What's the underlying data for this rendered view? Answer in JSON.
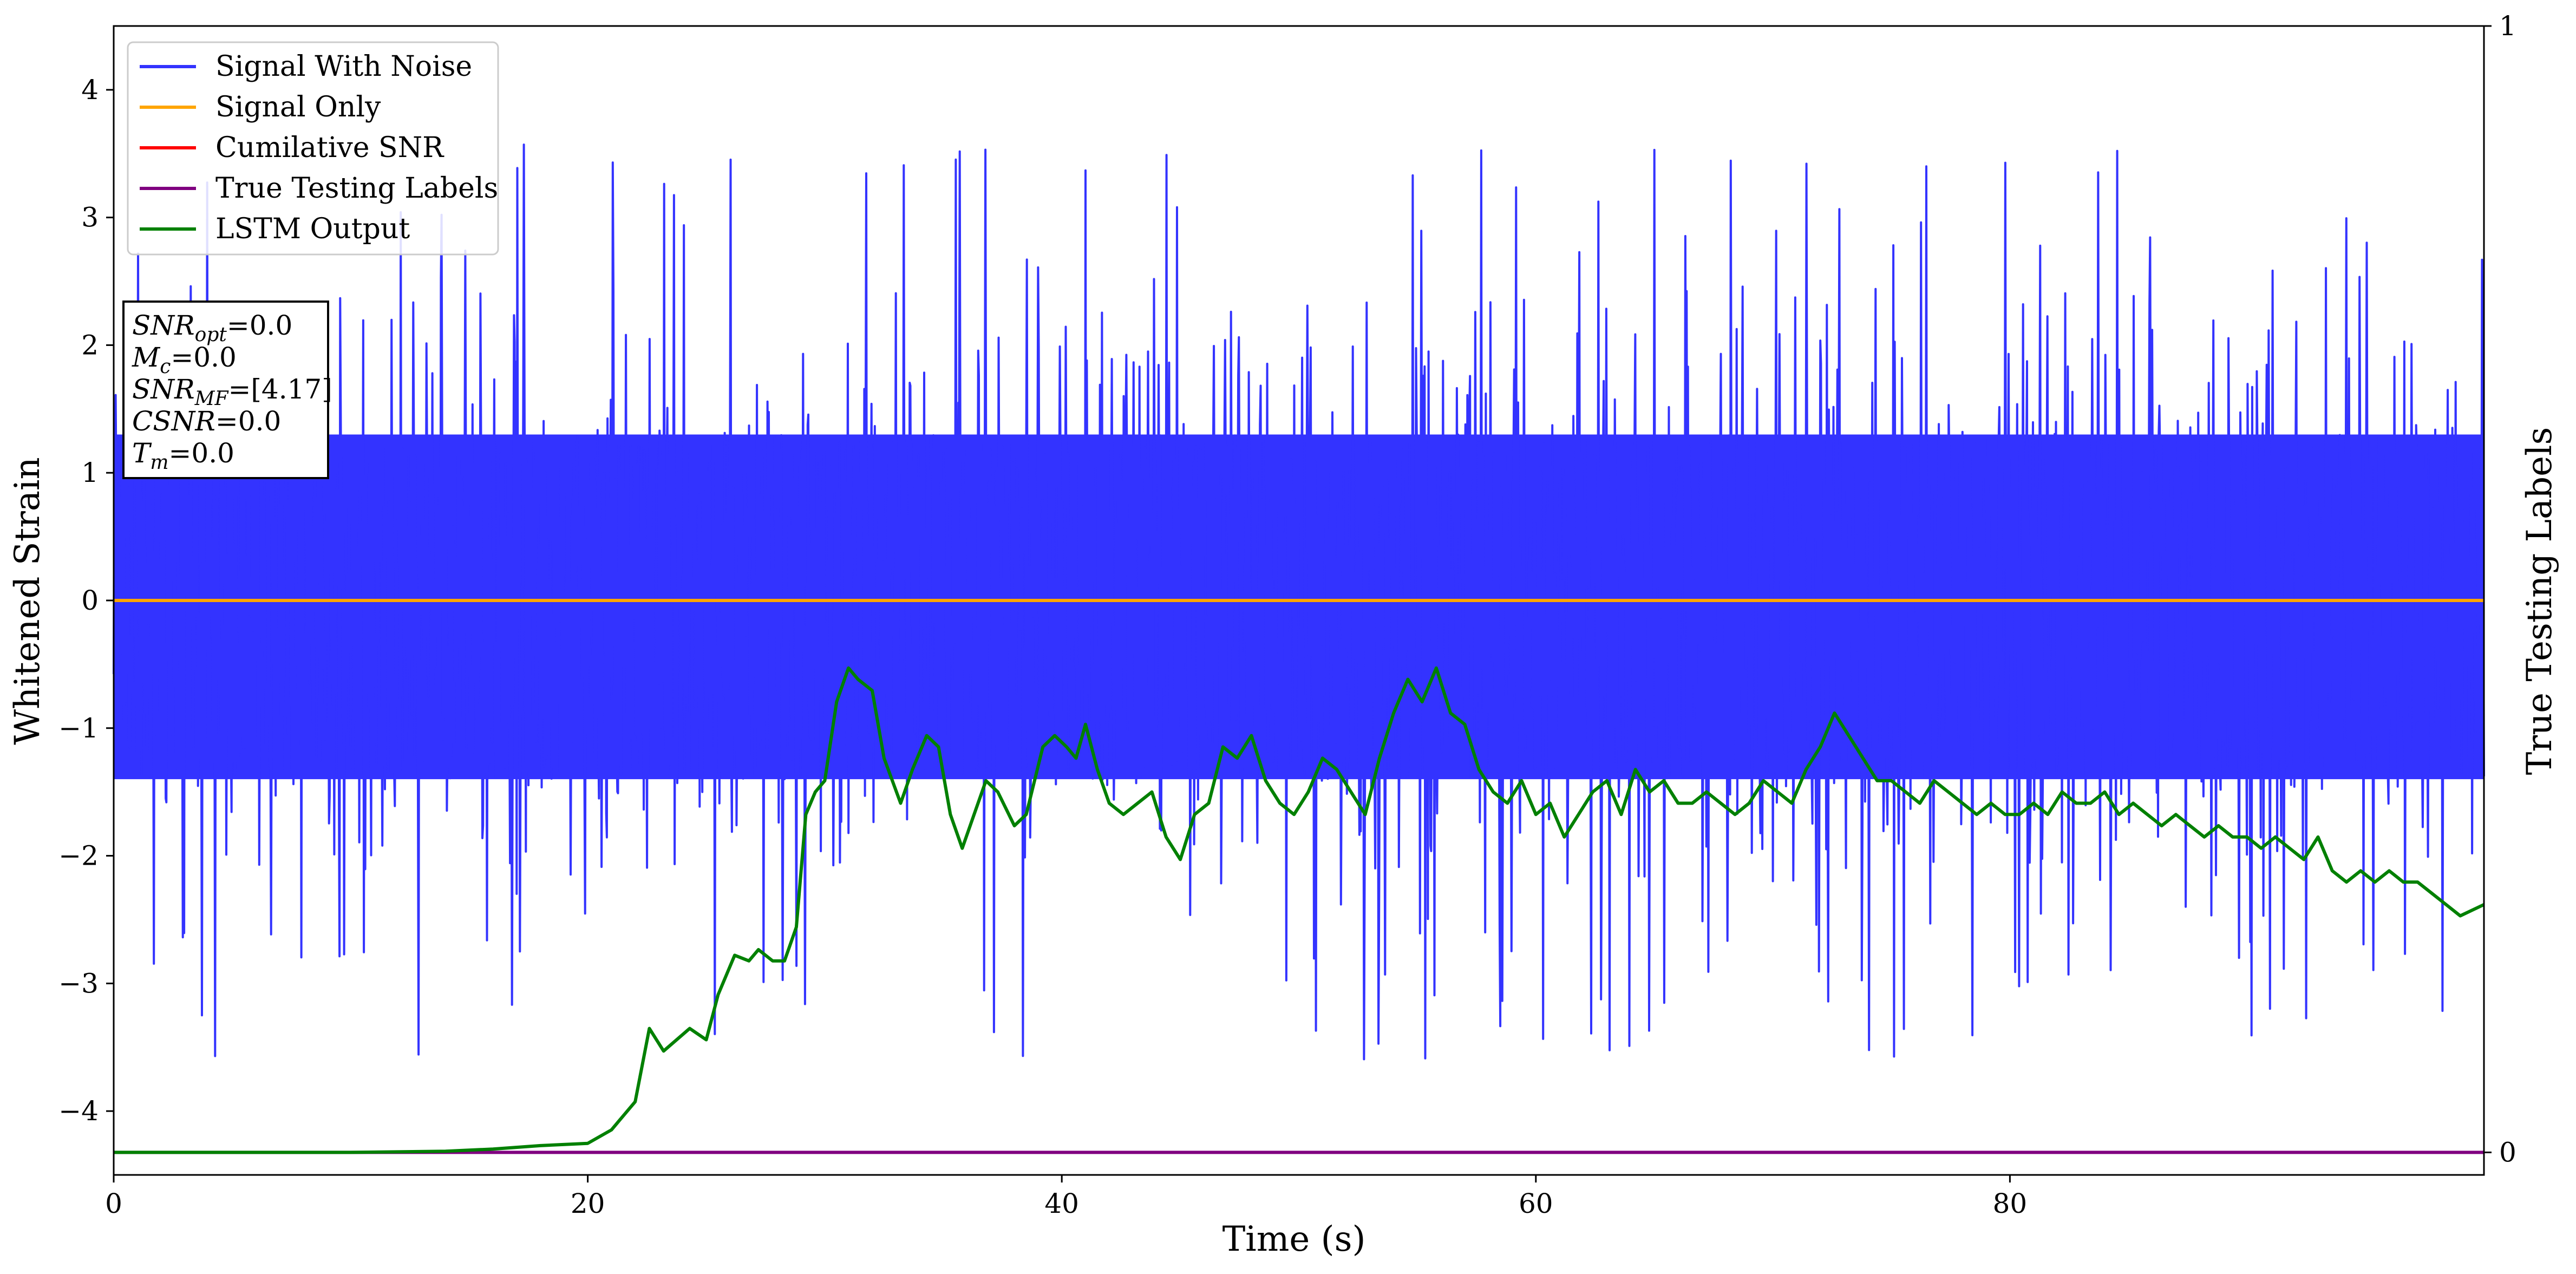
{
  "chart_data": {
    "type": "line",
    "xlabel": "Time (s)",
    "ylabel": "Whitened Strain",
    "y2label": "True Testing Labels",
    "xlim": [
      0,
      100
    ],
    "ylim": [
      -4.5,
      4.5
    ],
    "y2lim": [
      -0.02,
      1.0
    ],
    "x_ticks": [
      0,
      20,
      40,
      60,
      80
    ],
    "x_tick_labels": [
      "0",
      "20",
      "40",
      "60",
      "80"
    ],
    "y_ticks": [
      -4,
      -3,
      -2,
      -1,
      0,
      1,
      2,
      3,
      4
    ],
    "y_tick_labels": [
      "−4",
      "−3",
      "−2",
      "−1",
      "0",
      "1",
      "2",
      "3",
      "4"
    ],
    "y2_ticks": [
      0,
      1
    ],
    "y2_tick_labels": [
      "0",
      "1"
    ],
    "grid": false,
    "legend_position": "top-left",
    "series": [
      {
        "name": "Signal With Noise",
        "color": "#3333ff",
        "axis": "left",
        "kind": "dense-noise",
        "baseline": 0,
        "band": [
          -1.4,
          1.3
        ],
        "envelope": [
          -4.1,
          3.6
        ]
      },
      {
        "name": "Signal Only",
        "color": "#ffa500",
        "axis": "left",
        "x": [
          0,
          100
        ],
        "y": [
          0,
          0
        ]
      },
      {
        "name": "Cumilative SNR",
        "color": "#ff0000",
        "axis": "right",
        "x": [],
        "y": []
      },
      {
        "name": "True Testing Labels",
        "color": "#800080",
        "axis": "right",
        "x": [
          0,
          100
        ],
        "y": [
          0,
          0
        ]
      },
      {
        "name": "LSTM Output",
        "color": "#008000",
        "axis": "right",
        "x": [
          0,
          10,
          14,
          16,
          18,
          20,
          21,
          22,
          22.6,
          23.2,
          24.3,
          25,
          25.5,
          26.2,
          26.8,
          27.2,
          27.8,
          28.3,
          28.8,
          29.2,
          29.6,
          30,
          30.5,
          31,
          31.4,
          32,
          32.5,
          33.2,
          33.7,
          34.3,
          34.8,
          35.3,
          35.8,
          36.3,
          36.8,
          37.3,
          38,
          38.5,
          39.2,
          39.7,
          40.2,
          40.6,
          41,
          41.5,
          42,
          42.6,
          43.2,
          43.8,
          44.4,
          45,
          45.6,
          46.2,
          46.8,
          47.4,
          48,
          48.6,
          49.2,
          49.8,
          50.4,
          51,
          51.6,
          52.2,
          52.8,
          53.4,
          54,
          54.6,
          55.2,
          55.8,
          56.4,
          57,
          57.6,
          58.2,
          58.8,
          59.4,
          60,
          60.6,
          61.2,
          61.8,
          62.4,
          63,
          63.6,
          64.2,
          64.8,
          65.4,
          66,
          66.6,
          67.2,
          67.8,
          68.4,
          69,
          69.6,
          70.2,
          70.8,
          71.4,
          72,
          72.6,
          73.2,
          73.8,
          74.4,
          75,
          75.6,
          76.2,
          76.8,
          77.4,
          78,
          78.6,
          79.2,
          79.8,
          80.4,
          81,
          81.6,
          82.2,
          82.8,
          83.4,
          84,
          84.6,
          85.2,
          85.8,
          86.4,
          87,
          87.6,
          88.2,
          88.8,
          89.4,
          90,
          90.6,
          91.2,
          91.8,
          92.4,
          93,
          93.6,
          94.2,
          94.8,
          95.4,
          96,
          96.6,
          97.2,
          97.8,
          98.4,
          99,
          100
        ],
        "y": [
          0,
          0,
          0.001,
          0.003,
          0.006,
          0.008,
          0.02,
          0.045,
          0.11,
          0.09,
          0.11,
          0.1,
          0.14,
          0.175,
          0.17,
          0.18,
          0.17,
          0.17,
          0.2,
          0.3,
          0.32,
          0.33,
          0.4,
          0.43,
          0.42,
          0.41,
          0.35,
          0.31,
          0.34,
          0.37,
          0.36,
          0.3,
          0.27,
          0.3,
          0.33,
          0.32,
          0.29,
          0.3,
          0.36,
          0.37,
          0.36,
          0.35,
          0.38,
          0.34,
          0.31,
          0.3,
          0.31,
          0.32,
          0.28,
          0.26,
          0.3,
          0.31,
          0.36,
          0.35,
          0.37,
          0.33,
          0.31,
          0.3,
          0.32,
          0.35,
          0.34,
          0.32,
          0.3,
          0.35,
          0.39,
          0.42,
          0.4,
          0.43,
          0.39,
          0.38,
          0.34,
          0.32,
          0.31,
          0.33,
          0.3,
          0.31,
          0.28,
          0.3,
          0.32,
          0.33,
          0.3,
          0.34,
          0.32,
          0.33,
          0.31,
          0.31,
          0.32,
          0.31,
          0.3,
          0.31,
          0.33,
          0.32,
          0.31,
          0.34,
          0.36,
          0.39,
          0.37,
          0.35,
          0.33,
          0.33,
          0.32,
          0.31,
          0.33,
          0.32,
          0.31,
          0.3,
          0.31,
          0.3,
          0.3,
          0.31,
          0.3,
          0.32,
          0.31,
          0.31,
          0.32,
          0.3,
          0.31,
          0.3,
          0.29,
          0.3,
          0.29,
          0.28,
          0.29,
          0.28,
          0.28,
          0.27,
          0.28,
          0.27,
          0.26,
          0.28,
          0.25,
          0.24,
          0.25,
          0.24,
          0.25,
          0.24,
          0.24,
          0.23,
          0.22,
          0.21,
          0.22
        ]
      }
    ],
    "annotation_lines": [
      {
        "label": "SNR",
        "sub": "opt",
        "value": "=0.0"
      },
      {
        "label": "M",
        "sub": "c",
        "value": "=0.0"
      },
      {
        "label": "SNR",
        "sub": "MF",
        "value": "=[4.17]"
      },
      {
        "label": "CSNR",
        "sub": "",
        "value": "=0.0"
      },
      {
        "label": "T",
        "sub": "m",
        "value": "=0.0"
      }
    ]
  }
}
